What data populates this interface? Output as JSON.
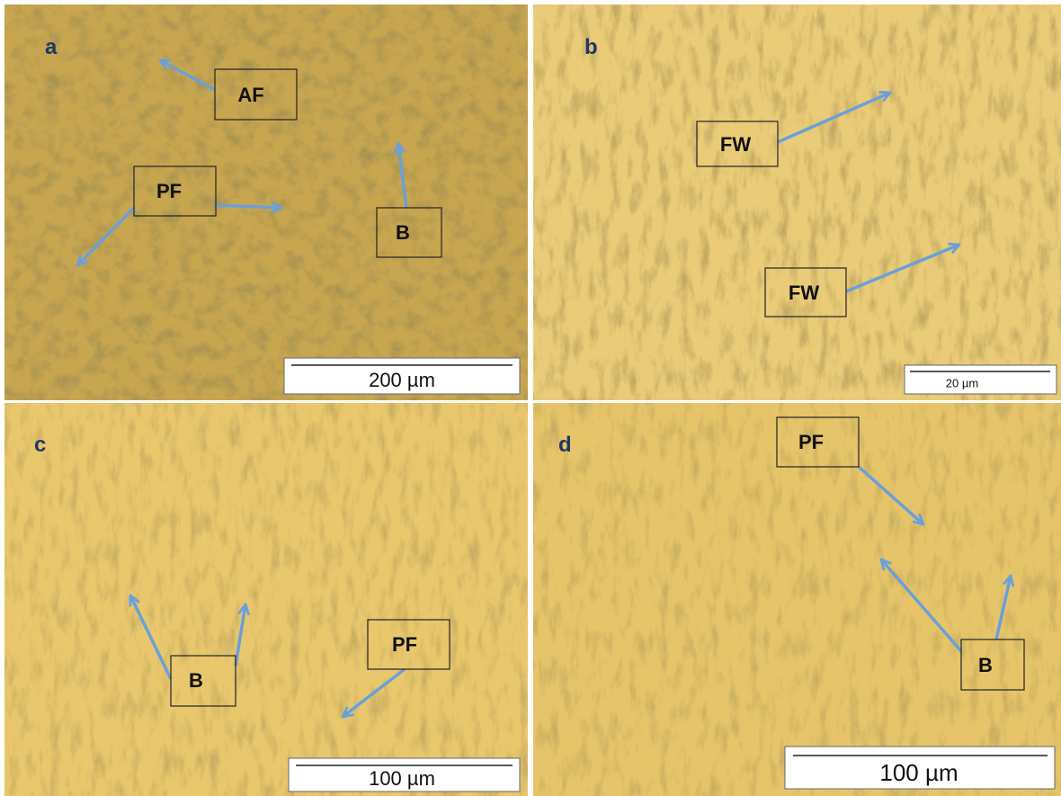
{
  "panels": [
    {
      "letter": "a",
      "labels": [
        "AF",
        "PF",
        "B"
      ],
      "scale_bar": "200 µm"
    },
    {
      "letter": "b",
      "labels": [
        "FW",
        "FW"
      ],
      "scale_bar": "20 µm"
    },
    {
      "letter": "c",
      "labels": [
        "B",
        "PF"
      ],
      "scale_bar": "100 µm"
    },
    {
      "letter": "d",
      "labels": [
        "PF",
        "B"
      ],
      "scale_bar": "100 µm"
    }
  ]
}
